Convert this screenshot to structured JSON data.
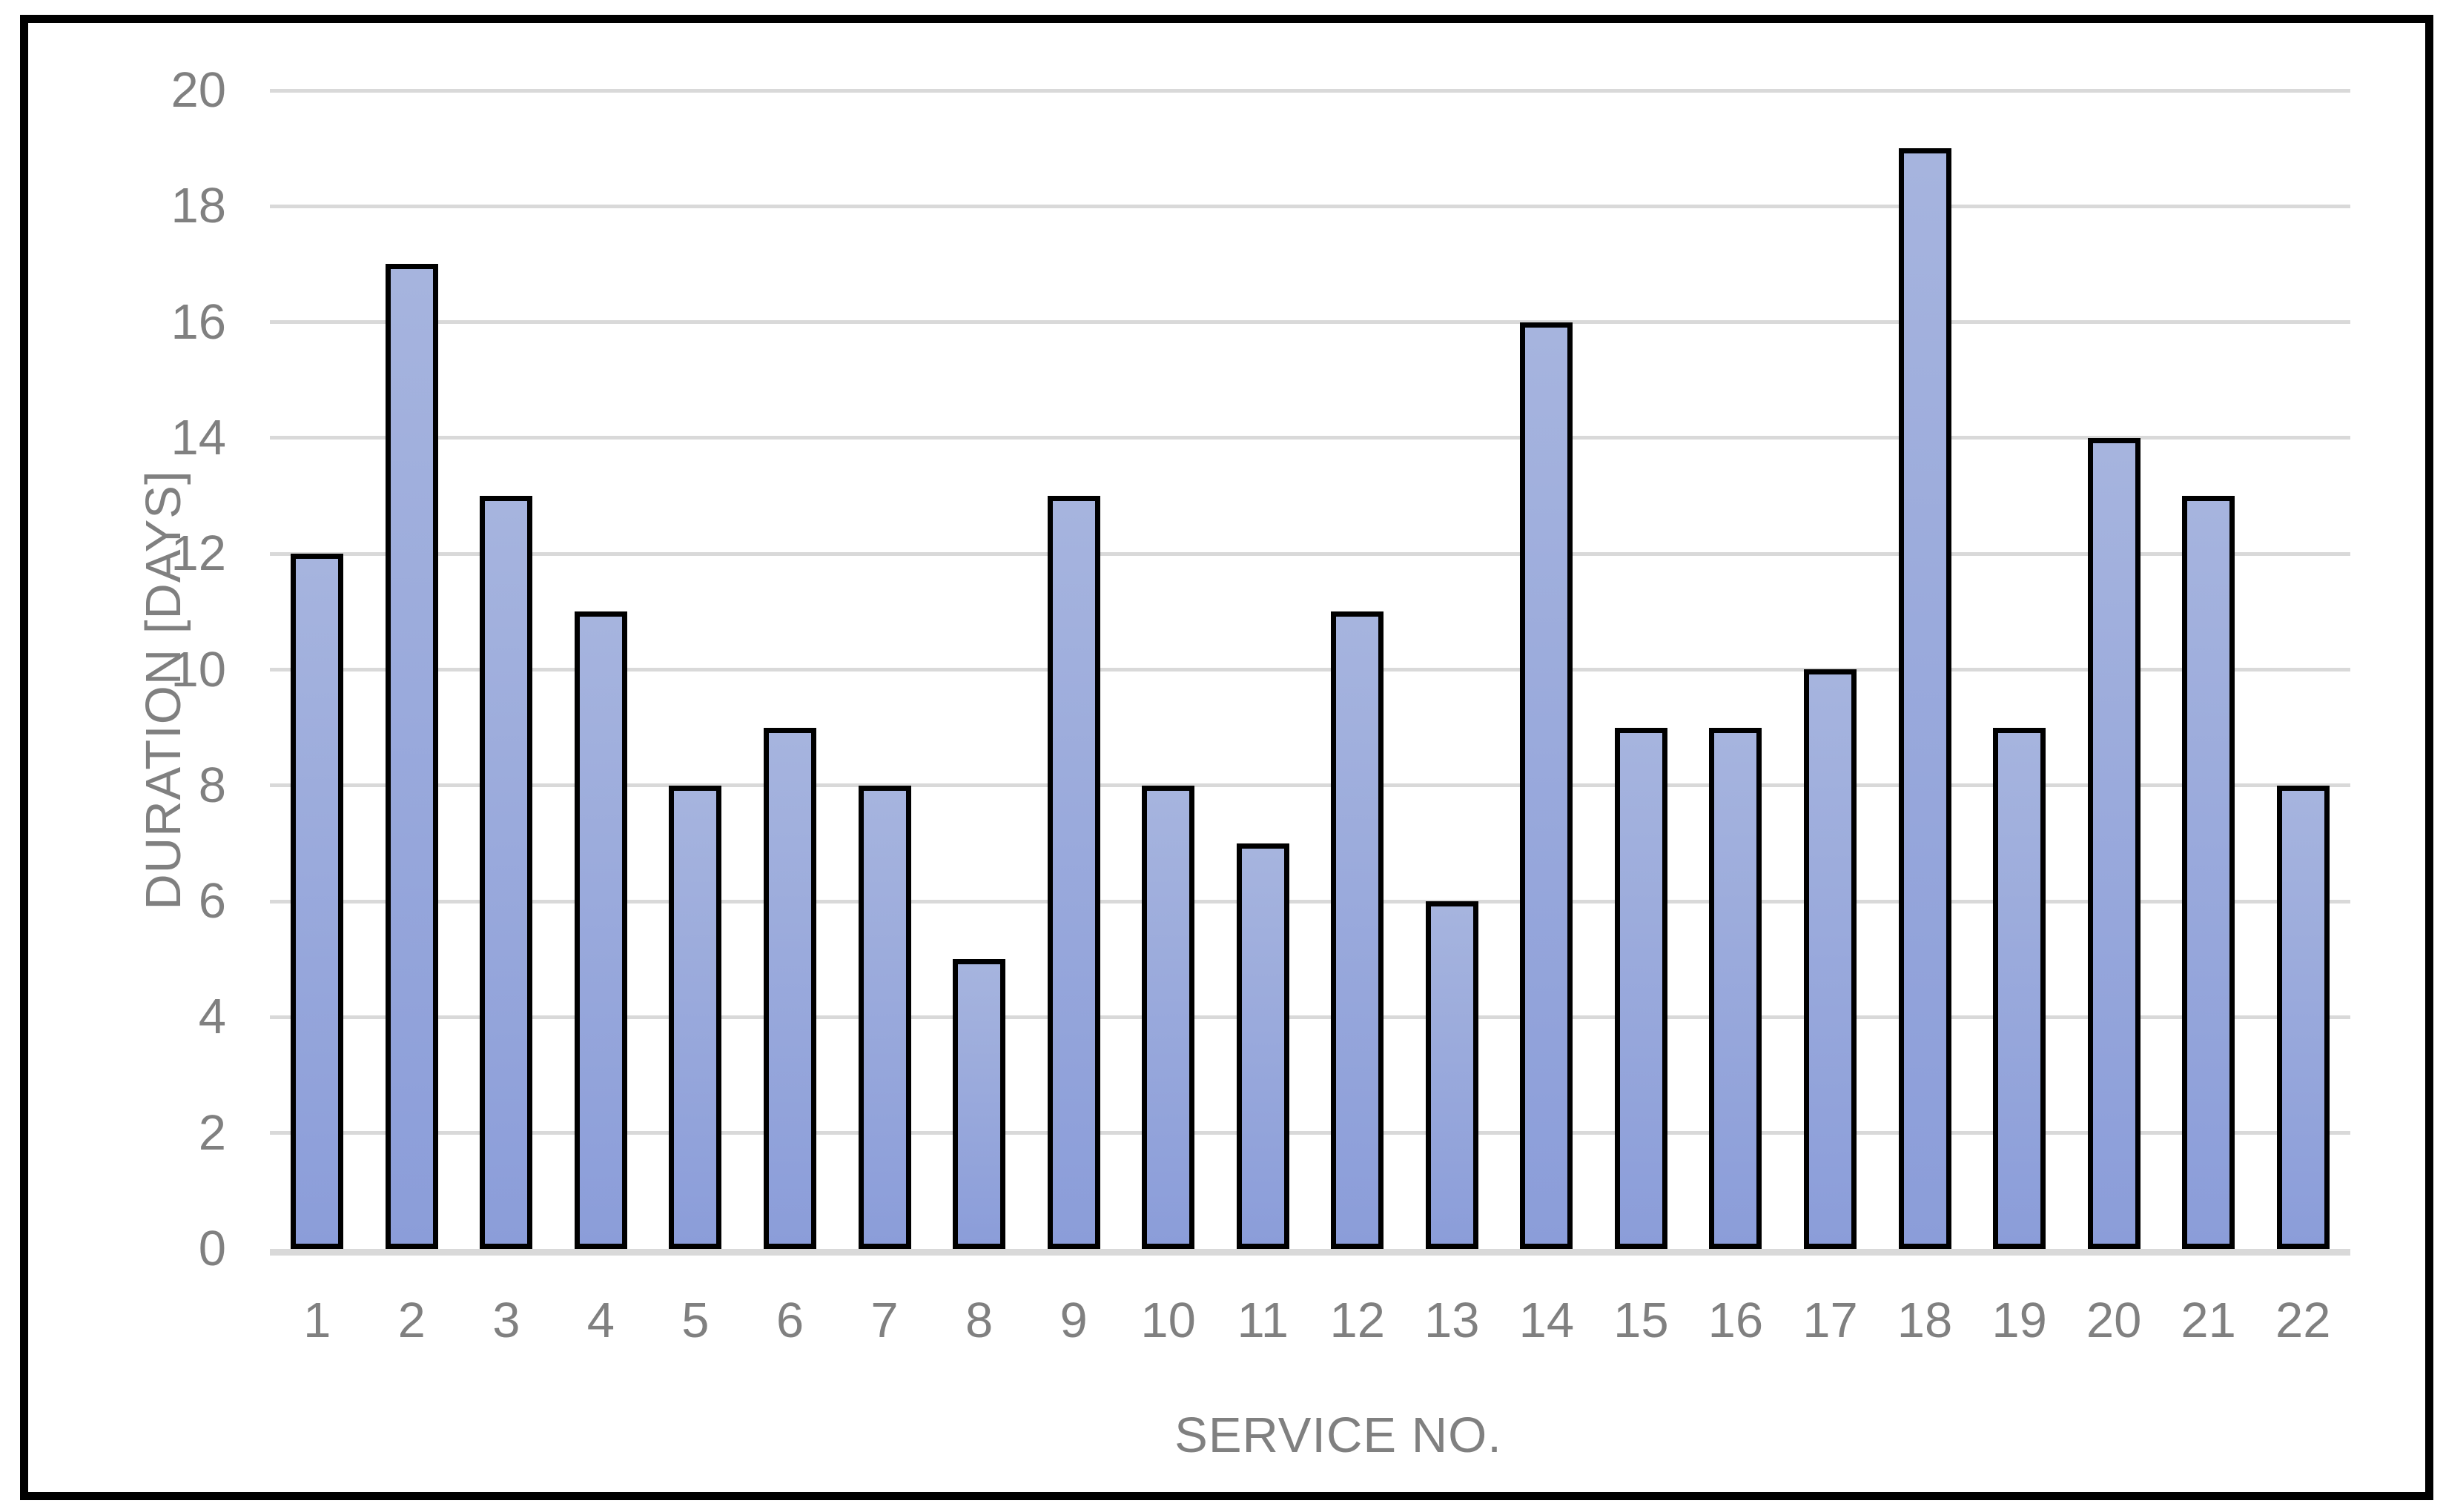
{
  "chart_data": {
    "type": "bar",
    "title": "",
    "categories": [
      "1",
      "2",
      "3",
      "4",
      "5",
      "6",
      "7",
      "8",
      "9",
      "10",
      "11",
      "12",
      "13",
      "14",
      "15",
      "16",
      "17",
      "18",
      "19",
      "20",
      "21",
      "22"
    ],
    "values": [
      12,
      17,
      13,
      11,
      8,
      9,
      8,
      5,
      13,
      8,
      7,
      11,
      6,
      16,
      9,
      9,
      10,
      19,
      9,
      14,
      13,
      8
    ],
    "xlabel": "SERVICE NO.",
    "ylabel": "DURATION [DAYS]",
    "ylim": [
      0,
      20
    ],
    "y_ticks": [
      0,
      2,
      4,
      6,
      8,
      10,
      12,
      14,
      16,
      18,
      20
    ],
    "grid": true,
    "legend": false,
    "colors": {
      "background": "#FFFFFF",
      "frame_border": "#000000",
      "gridline": "#D9D9D9",
      "baseline": "#D9D9D9",
      "bar_fill_top": "#A6B4DE",
      "bar_fill_bottom": "#8B9DD9",
      "bar_border": "#000000",
      "axis_text": "#808080"
    }
  }
}
